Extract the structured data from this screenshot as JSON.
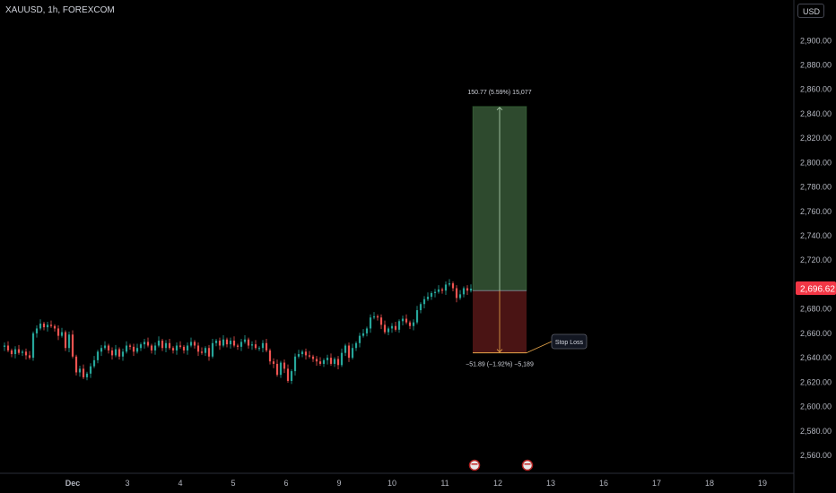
{
  "header": {
    "symbol": "XAUUSD, 1h, FOREXCOM",
    "currency": "USD"
  },
  "colors": {
    "up": "#26a69a",
    "down": "#ef5350",
    "target_fill": "#2e4a2e",
    "stop_fill": "#4a1414",
    "price_badge": "#f23645"
  },
  "chart_data": {
    "type": "candlestick",
    "y_ticks": [
      "2,560.00",
      "2,580.00",
      "2,600.00",
      "2,620.00",
      "2,640.00",
      "2,660.00",
      "2,680.00",
      "2,700.00",
      "2,720.00",
      "2,740.00",
      "2,760.00",
      "2,780.00",
      "2,800.00",
      "2,820.00",
      "2,840.00",
      "2,860.00",
      "2,880.00",
      "2,900.00"
    ],
    "ylim": [
      2550,
      2920
    ],
    "x_ticks": [
      "Dec",
      "3",
      "4",
      "5",
      "6",
      "9",
      "10",
      "11",
      "12",
      "13",
      "16",
      "17",
      "18",
      "19"
    ],
    "current_price": "2,696.62",
    "current_price_value": 2696.62,
    "position": {
      "type": "long",
      "entry": 2695,
      "target": 2846,
      "stop": 2644,
      "target_label": "150.77 (5.59%) 15,077",
      "stop_label": "−51.89 (−1.92%) −5,189",
      "stop_tag": "Stop Loss"
    },
    "close_path": [
      [
        0,
        2649
      ],
      [
        4,
        2650
      ],
      [
        8,
        2646
      ],
      [
        12,
        2643
      ],
      [
        16,
        2647
      ],
      [
        20,
        2644
      ],
      [
        24,
        2645
      ],
      [
        28,
        2642
      ],
      [
        32,
        2640
      ],
      [
        36,
        2660
      ],
      [
        40,
        2664
      ],
      [
        44,
        2668
      ],
      [
        48,
        2665
      ],
      [
        52,
        2667
      ],
      [
        56,
        2666
      ],
      [
        60,
        2664
      ],
      [
        64,
        2658
      ],
      [
        68,
        2661
      ],
      [
        72,
        2648
      ],
      [
        76,
        2659
      ],
      [
        80,
        2641
      ],
      [
        84,
        2628
      ],
      [
        88,
        2631
      ],
      [
        92,
        2624
      ],
      [
        96,
        2627
      ],
      [
        100,
        2633
      ],
      [
        104,
        2638
      ],
      [
        108,
        2645
      ],
      [
        112,
        2648
      ],
      [
        116,
        2650
      ],
      [
        120,
        2646
      ],
      [
        124,
        2642
      ],
      [
        128,
        2647
      ],
      [
        132,
        2641
      ],
      [
        136,
        2645
      ],
      [
        140,
        2650
      ],
      [
        144,
        2649
      ],
      [
        148,
        2645
      ],
      [
        152,
        2648
      ],
      [
        156,
        2651
      ],
      [
        160,
        2653
      ],
      [
        164,
        2650
      ],
      [
        168,
        2646
      ],
      [
        172,
        2650
      ],
      [
        176,
        2654
      ],
      [
        180,
        2648
      ],
      [
        184,
        2652
      ],
      [
        188,
        2648
      ],
      [
        192,
        2646
      ],
      [
        196,
        2650
      ],
      [
        200,
        2649
      ],
      [
        204,
        2646
      ],
      [
        208,
        2650
      ],
      [
        212,
        2653
      ],
      [
        216,
        2650
      ],
      [
        220,
        2645
      ],
      [
        224,
        2644
      ],
      [
        228,
        2648
      ],
      [
        232,
        2641
      ],
      [
        236,
        2652
      ],
      [
        240,
        2654
      ],
      [
        244,
        2650
      ],
      [
        248,
        2655
      ],
      [
        252,
        2651
      ],
      [
        256,
        2654
      ],
      [
        260,
        2650
      ],
      [
        264,
        2649
      ],
      [
        268,
        2653
      ],
      [
        272,
        2655
      ],
      [
        276,
        2650
      ],
      [
        280,
        2651
      ],
      [
        284,
        2648
      ],
      [
        288,
        2648
      ],
      [
        292,
        2652
      ],
      [
        296,
        2646
      ],
      [
        300,
        2637
      ],
      [
        304,
        2635
      ],
      [
        308,
        2626
      ],
      [
        312,
        2636
      ],
      [
        316,
        2631
      ],
      [
        320,
        2621
      ],
      [
        324,
        2629
      ],
      [
        328,
        2641
      ],
      [
        332,
        2643
      ],
      [
        336,
        2645
      ],
      [
        340,
        2642
      ],
      [
        344,
        2641
      ],
      [
        348,
        2639
      ],
      [
        352,
        2637
      ],
      [
        356,
        2635
      ],
      [
        360,
        2638
      ],
      [
        364,
        2640
      ],
      [
        368,
        2635
      ],
      [
        372,
        2639
      ],
      [
        376,
        2634
      ],
      [
        380,
        2644
      ],
      [
        384,
        2650
      ],
      [
        388,
        2640
      ],
      [
        392,
        2648
      ],
      [
        396,
        2652
      ],
      [
        400,
        2658
      ],
      [
        404,
        2660
      ],
      [
        408,
        2664
      ],
      [
        412,
        2673
      ],
      [
        416,
        2674
      ],
      [
        420,
        2673
      ],
      [
        424,
        2667
      ],
      [
        428,
        2661
      ],
      [
        432,
        2664
      ],
      [
        436,
        2666
      ],
      [
        440,
        2663
      ],
      [
        444,
        2670
      ],
      [
        448,
        2672
      ],
      [
        452,
        2669
      ],
      [
        456,
        2666
      ],
      [
        460,
        2669
      ],
      [
        464,
        2679
      ],
      [
        468,
        2684
      ],
      [
        472,
        2688
      ],
      [
        476,
        2690
      ],
      [
        480,
        2693
      ],
      [
        484,
        2694
      ],
      [
        488,
        2696
      ],
      [
        492,
        2695
      ],
      [
        496,
        2700
      ],
      [
        500,
        2701
      ],
      [
        504,
        2697
      ],
      [
        508,
        2689
      ],
      [
        512,
        2692
      ],
      [
        516,
        2697
      ],
      [
        520,
        2695
      ],
      [
        524,
        2696.62
      ]
    ]
  }
}
